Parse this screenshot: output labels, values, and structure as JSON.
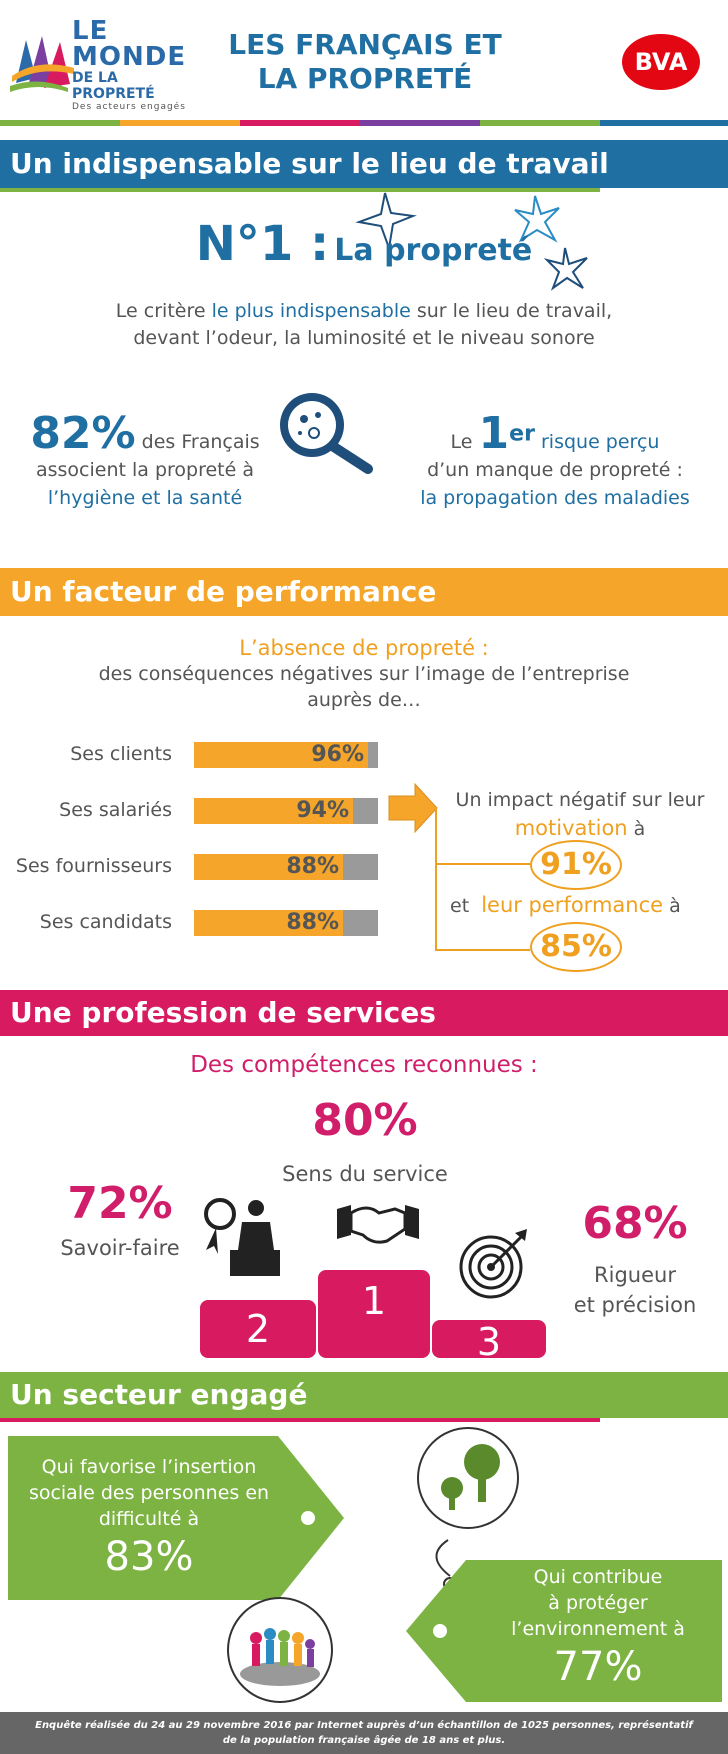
{
  "header": {
    "logo_line1": "LE",
    "logo_line2": "MONDE",
    "logo_line3": "DE LA PROPRETÉ",
    "logo_tagline": "Des acteurs engagés",
    "title_line1": "LES FRANÇAIS ET",
    "title_line2": "LA PROPRETÉ",
    "bva_logo": "BVA"
  },
  "colors": {
    "blue": "#1f6fa3",
    "orange": "#f4a52a",
    "pink": "#d81b60",
    "green": "#7cb342",
    "grey": "#9a9a9a"
  },
  "section1": {
    "band": "Un indispensable sur le lieu de travail",
    "no1": "N°1 :",
    "no1_sub": "La propreté",
    "criterion_pre": "Le critère ",
    "criterion_hl": "le plus indispensable",
    "criterion_post": " sur le lieu de travail,",
    "criterion_line2": "devant l’odeur, la luminosité et le niveau sonore",
    "stat_left_value": "82%",
    "stat_left_text1": " des Français",
    "stat_left_text2": "associent la propreté à",
    "stat_left_text3": "l’hygiène et la santé",
    "stat_right_pre": "Le ",
    "stat_right_value": "1",
    "stat_right_sup": "er",
    "stat_right_text1": " risque perçu",
    "stat_right_text2": "d’un manque de propreté :",
    "stat_right_text3": "la propagation des maladies",
    "icon": "magnifier-microbes-icon"
  },
  "section2": {
    "band": "Un facteur de performance",
    "heading": "L’absence de propreté :",
    "sub1": "des conséquences négatives sur l’image de l’entreprise",
    "sub2": "auprès de…",
    "impact_line1": "Un impact négatif sur leur",
    "impact_motivation": "motivation",
    "impact_a": " à",
    "impact_value1": "91%",
    "impact_et": "et ",
    "impact_performance": "leur performance",
    "impact_a2": " à",
    "impact_value2": "85%"
  },
  "chart_data": {
    "type": "bar",
    "categories": [
      "Ses clients",
      "Ses salariés",
      "Ses fournisseurs",
      "Ses candidats"
    ],
    "values": [
      96,
      94,
      88,
      88
    ],
    "value_labels": [
      "96%",
      "94%",
      "88%",
      "88%"
    ],
    "ylim": [
      0,
      100
    ],
    "orientation": "horizontal",
    "grid": false
  },
  "section3": {
    "band": "Une profession de services",
    "heading": "Des compétences reconnues :",
    "first_value": "80%",
    "first_label": "Sens du service",
    "second_value": "72%",
    "second_label": "Savoir-faire",
    "third_value": "68%",
    "third_label1": "Rigueur",
    "third_label2": "et précision",
    "podium": [
      "2",
      "1",
      "3"
    ]
  },
  "section4": {
    "band": "Un secteur engagé",
    "left_text1": "Qui favorise l’insertion",
    "left_text2": "sociale des personnes en",
    "left_text3": "difficulté à",
    "left_value": "83%",
    "right_text1": "Qui contribue",
    "right_text2": "à protéger",
    "right_text3": "l’environnement à",
    "right_value": "77%"
  },
  "footer": {
    "line1": "Enquête réalisée du 24 au 29 novembre 2016 par Internet auprès d’un échantillon de 1025 personnes, représentatif",
    "line2": "de la population française âgée de 18 ans et plus."
  }
}
